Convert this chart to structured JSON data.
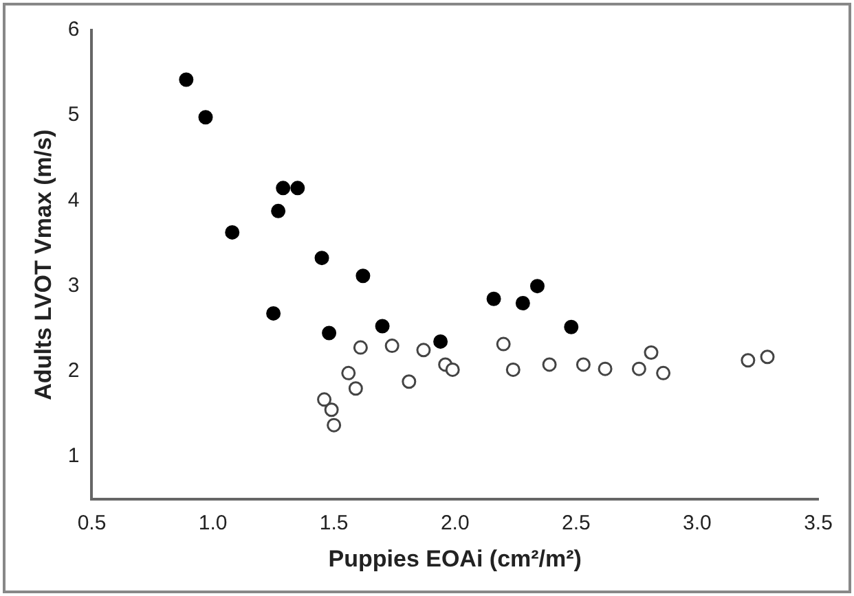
{
  "chart_data": {
    "type": "scatter",
    "xlabel": "Puppies EOAi (cm²/m²)",
    "ylabel": "Adults LVOT Vmax (m/s)",
    "xlim": [
      0.5,
      3.5
    ],
    "xticks": [
      {
        "value": 0.5,
        "label": "0.5"
      },
      {
        "value": 1,
        "label": "1.0"
      },
      {
        "value": 1.5,
        "label": "1.5"
      },
      {
        "value": 2,
        "label": "2.0"
      },
      {
        "value": 2.5,
        "label": "2.5"
      },
      {
        "value": 3,
        "label": "3.0"
      },
      {
        "value": 3.5,
        "label": "3.5"
      }
    ],
    "ylim": [
      0.5,
      6
    ],
    "yticks": [
      1,
      2,
      3,
      4,
      5,
      6
    ],
    "grid": false,
    "legend": false,
    "marker": "circle",
    "series": [
      {
        "color": "#000000",
        "x": [
          0.89,
          0.97,
          1.08,
          1.25,
          1.27,
          1.29,
          1.35,
          1.45,
          1.48,
          1.62,
          1.7,
          1.94,
          2.16,
          2.28,
          2.34,
          2.48
        ],
        "values": [
          5.42,
          4.98,
          3.63,
          2.68,
          3.88,
          4.15,
          4.15,
          3.33,
          2.45,
          3.12,
          2.53,
          2.35,
          2.85,
          2.8,
          3.0,
          2.52
        ]
      },
      {
        "color": "#444444",
        "x": [
          1.46,
          1.49,
          1.5,
          1.56,
          1.61,
          1.59,
          1.74,
          1.81,
          1.87,
          1.96,
          1.99,
          2.2,
          2.24,
          2.39,
          2.53,
          2.62,
          2.76,
          2.81,
          2.86,
          3.21,
          3.29
        ],
        "values": [
          1.67,
          1.55,
          1.37,
          1.98,
          2.28,
          1.8,
          2.3,
          1.88,
          2.25,
          2.08,
          2.02,
          2.32,
          2.02,
          2.08,
          2.08,
          2.03,
          2.03,
          2.22,
          1.98,
          2.13,
          2.17
        ]
      }
    ]
  }
}
